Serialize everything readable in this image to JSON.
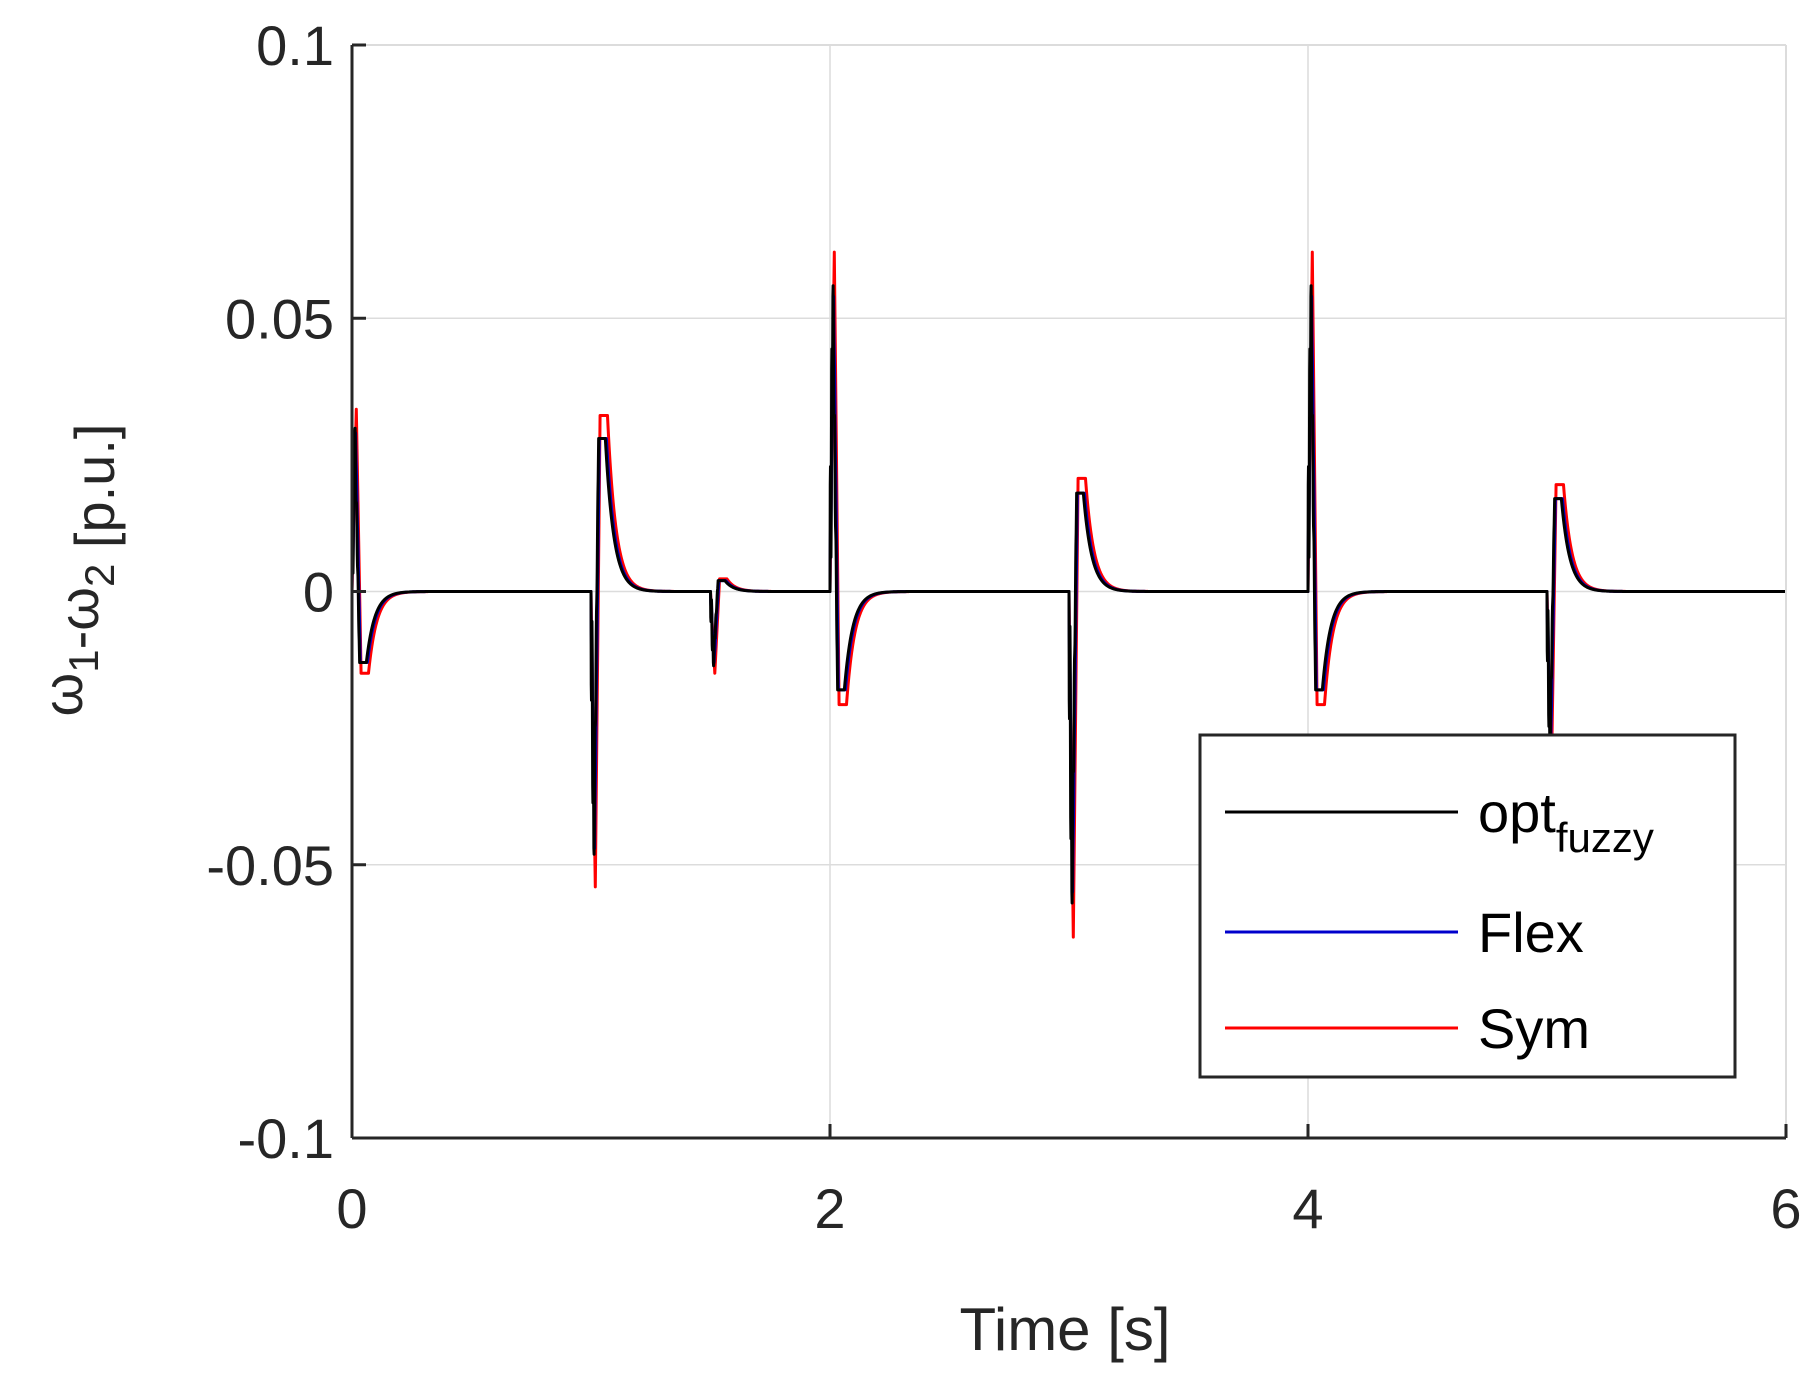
{
  "chart_data": {
    "type": "line",
    "title": "",
    "xlabel": "Time [s]",
    "ylabel": {
      "parts": [
        {
          "text": "ω",
          "sub": "1"
        },
        {
          "text": "-ω",
          "sub": "2"
        },
        {
          "text": " [p.u.]",
          "sub": ""
        }
      ]
    },
    "xlim": [
      0,
      6
    ],
    "ylim": [
      -0.1,
      0.1
    ],
    "xticks": [
      0,
      2,
      4,
      6
    ],
    "xtick_labels": [
      "0",
      "2",
      "4",
      "6"
    ],
    "yticks": [
      -0.1,
      -0.05,
      0,
      0.05,
      0.1
    ],
    "ytick_labels": [
      "-0.1",
      "-0.05",
      "0",
      "0.05",
      "0.1"
    ],
    "grid": true,
    "legend_position": "lower-right",
    "events": [
      {
        "t": 0.0,
        "p1": 0.029,
        "p2": -0.013
      },
      {
        "t": 1.0,
        "p1": -0.047,
        "p2": 0.028
      },
      {
        "t": 1.5,
        "p1": -0.013,
        "p2": 0.002
      },
      {
        "t": 2.0,
        "p1": 0.054,
        "p2": -0.018
      },
      {
        "t": 3.0,
        "p1": -0.055,
        "p2": 0.018
      },
      {
        "t": 4.0,
        "p1": 0.054,
        "p2": -0.018
      },
      {
        "t": 5.0,
        "p1": -0.03,
        "p2": 0.017
      }
    ],
    "series": [
      {
        "key": "opt",
        "name": "opt",
        "name_sub": "fuzzy",
        "color": "#000000",
        "scale": 1.0,
        "shift": 0.0,
        "ring": 0.35
      },
      {
        "key": "flex",
        "name": "Flex",
        "name_sub": "",
        "color": "#0000cc",
        "scale": 1.0,
        "shift": 0.003,
        "ring": 0.1
      },
      {
        "key": "sym",
        "name": "Sym",
        "name_sub": "",
        "color": "#ff0000",
        "scale": 1.15,
        "shift": 0.006,
        "ring": 0.0
      }
    ]
  }
}
